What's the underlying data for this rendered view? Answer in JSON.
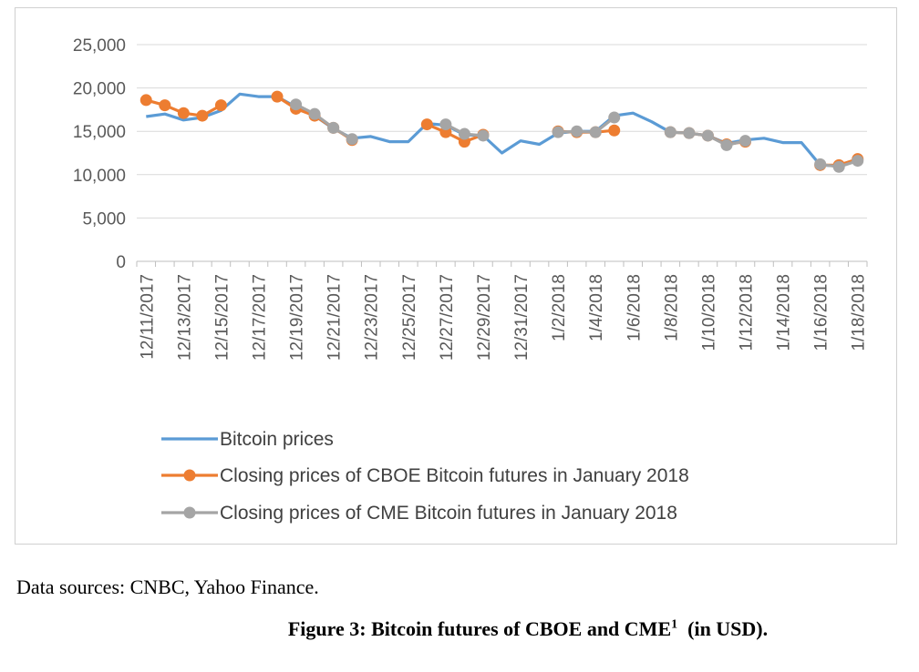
{
  "chart_data": {
    "type": "line",
    "title": "",
    "xlabel": "",
    "ylabel": "",
    "ylim": [
      0,
      25000
    ],
    "yticks": [
      0,
      5000,
      10000,
      15000,
      20000,
      25000
    ],
    "ytick_labels": [
      "0",
      "5,000",
      "10,000",
      "15,000",
      "20,000",
      "25,000"
    ],
    "categories": [
      "12/11/2017",
      "12/12/2017",
      "12/13/2017",
      "12/14/2017",
      "12/15/2017",
      "12/16/2017",
      "12/17/2017",
      "12/18/2017",
      "12/19/2017",
      "12/20/2017",
      "12/21/2017",
      "12/22/2017",
      "12/23/2017",
      "12/24/2017",
      "12/25/2017",
      "12/26/2017",
      "12/27/2017",
      "12/28/2017",
      "12/29/2017",
      "12/30/2017",
      "12/31/2017",
      "1/1/2018",
      "1/2/2018",
      "1/3/2018",
      "1/4/2018",
      "1/5/2018",
      "1/6/2018",
      "1/7/2018",
      "1/8/2018",
      "1/9/2018",
      "1/10/2018",
      "1/11/2018",
      "1/12/2018",
      "1/13/2018",
      "1/14/2018",
      "1/15/2018",
      "1/16/2018",
      "1/17/2018",
      "1/18/2018"
    ],
    "xtick_labels": [
      "12/11/2017",
      "12/13/2017",
      "12/15/2017",
      "12/17/2017",
      "12/19/2017",
      "12/21/2017",
      "12/23/2017",
      "12/25/2017",
      "12/27/2017",
      "12/29/2017",
      "12/31/2017",
      "1/2/2018",
      "1/4/2018",
      "1/6/2018",
      "1/8/2018",
      "1/10/2018",
      "1/12/2018",
      "1/14/2018",
      "1/16/2018",
      "1/18/2018"
    ],
    "series": [
      {
        "name": "Bitcoin prices",
        "color": "#5b9bd5",
        "marker": false,
        "x": [
          0,
          0.5,
          1,
          1.5,
          2,
          2.5,
          3,
          3.5,
          4,
          4.5,
          5,
          5.5,
          6,
          6.5,
          7,
          7.5,
          8,
          8.5,
          9,
          9.5,
          10,
          10.5,
          11,
          11.5,
          12,
          12.5,
          13,
          13.5,
          14,
          14.5,
          15,
          15.5,
          16,
          16.5,
          17,
          17.5,
          18,
          18.5,
          19
        ],
        "values": [
          16700,
          17000,
          16300,
          16600,
          17400,
          19300,
          19000,
          19000,
          17800,
          16800,
          15300,
          14200,
          14400,
          13800,
          13800,
          15900,
          15700,
          14600,
          14500,
          12500,
          13900,
          13500,
          14800,
          15000,
          15000,
          16800,
          17100,
          16100,
          14900,
          14800,
          14500,
          13600,
          14000,
          14200,
          13700,
          13700,
          11100,
          11000,
          11700
        ]
      },
      {
        "name": "Closing prices of CBOE Bitcoin futures in January 2018",
        "color": "#ed7d31",
        "marker": true,
        "segments": [
          {
            "x": [
              0,
              0.5,
              1,
              1.5,
              2
            ],
            "values": [
              18600,
              18000,
              17100,
              16800,
              18000
            ]
          },
          {
            "x": [
              3.5,
              4,
              4.5,
              5,
              5.5
            ],
            "values": [
              19000,
              17600,
              16800,
              15400,
              14000
            ]
          },
          {
            "x": [
              7.5,
              8,
              8.5,
              9
            ],
            "values": [
              15800,
              14900,
              13800,
              14600
            ]
          },
          {
            "x": [
              11,
              11.5,
              12,
              12.5
            ],
            "values": [
              15000,
              14900,
              14900,
              15100
            ]
          },
          {
            "x": [
              14,
              14.5,
              15,
              15.5,
              16
            ],
            "values": [
              14900,
              14800,
              14500,
              13500,
              13800
            ]
          },
          {
            "x": [
              18,
              18.5,
              19
            ],
            "values": [
              11100,
              11100,
              11800
            ]
          }
        ]
      },
      {
        "name": "Closing prices of CME Bitcoin futures in January 2018",
        "color": "#a5a5a5",
        "marker": true,
        "segments": [
          {
            "x": [
              4,
              4.5,
              5,
              5.5
            ],
            "values": [
              18100,
              17000,
              15400,
              14100
            ]
          },
          {
            "x": [
              8,
              8.5,
              9
            ],
            "values": [
              15800,
              14700,
              14500
            ]
          },
          {
            "x": [
              11,
              11.5,
              12,
              12.5
            ],
            "values": [
              14900,
              15000,
              14900,
              16600
            ]
          },
          {
            "x": [
              14,
              14.5,
              15,
              15.5,
              16
            ],
            "values": [
              14900,
              14800,
              14500,
              13400,
              13900
            ]
          },
          {
            "x": [
              18,
              18.5,
              19
            ],
            "values": [
              11200,
              10900,
              11600
            ]
          }
        ]
      }
    ],
    "legend_position": "bottom"
  },
  "source_note": "Data sources: CNBC, Yahoo Finance.",
  "caption": {
    "main": "Figure 3: Bitcoin futures of CBOE and CME",
    "footnote_marker": "1",
    "suffix": "  (in USD)."
  }
}
